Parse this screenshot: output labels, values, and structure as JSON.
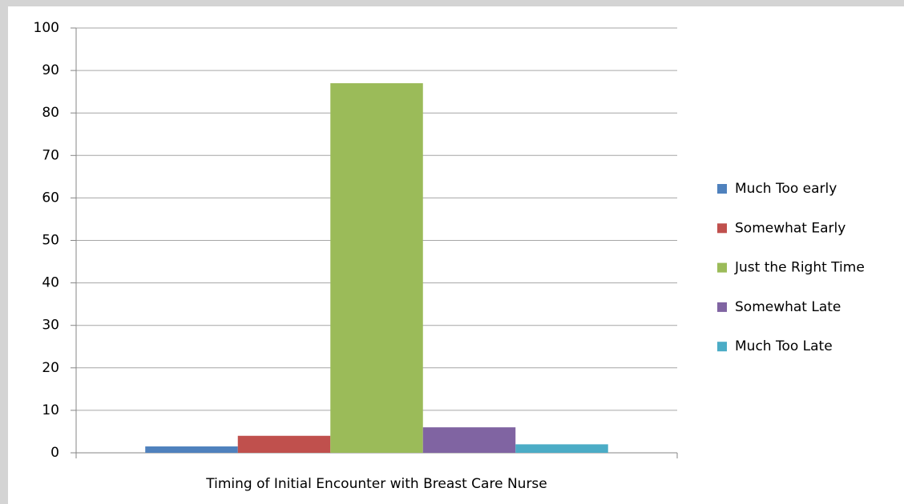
{
  "chart_data": {
    "type": "bar",
    "categories": [
      "Timing of Initial Encounter with Breast Care Nurse"
    ],
    "series": [
      {
        "name": "Much Too early",
        "color": "#4f81bd",
        "values": [
          1.5
        ]
      },
      {
        "name": "Somewhat Early",
        "color": "#c0504d",
        "values": [
          4
        ]
      },
      {
        "name": "Just the Right Time",
        "color": "#9bbb59",
        "values": [
          87
        ]
      },
      {
        "name": "Somewhat Late",
        "color": "#8064a2",
        "values": [
          6
        ]
      },
      {
        "name": "Much Too Late",
        "color": "#4bacc6",
        "values": [
          2
        ]
      }
    ],
    "ylim": [
      0,
      100
    ],
    "yticks": [
      0,
      10,
      20,
      30,
      40,
      50,
      60,
      70,
      80,
      90,
      100
    ],
    "grid": true,
    "legend": "right"
  }
}
